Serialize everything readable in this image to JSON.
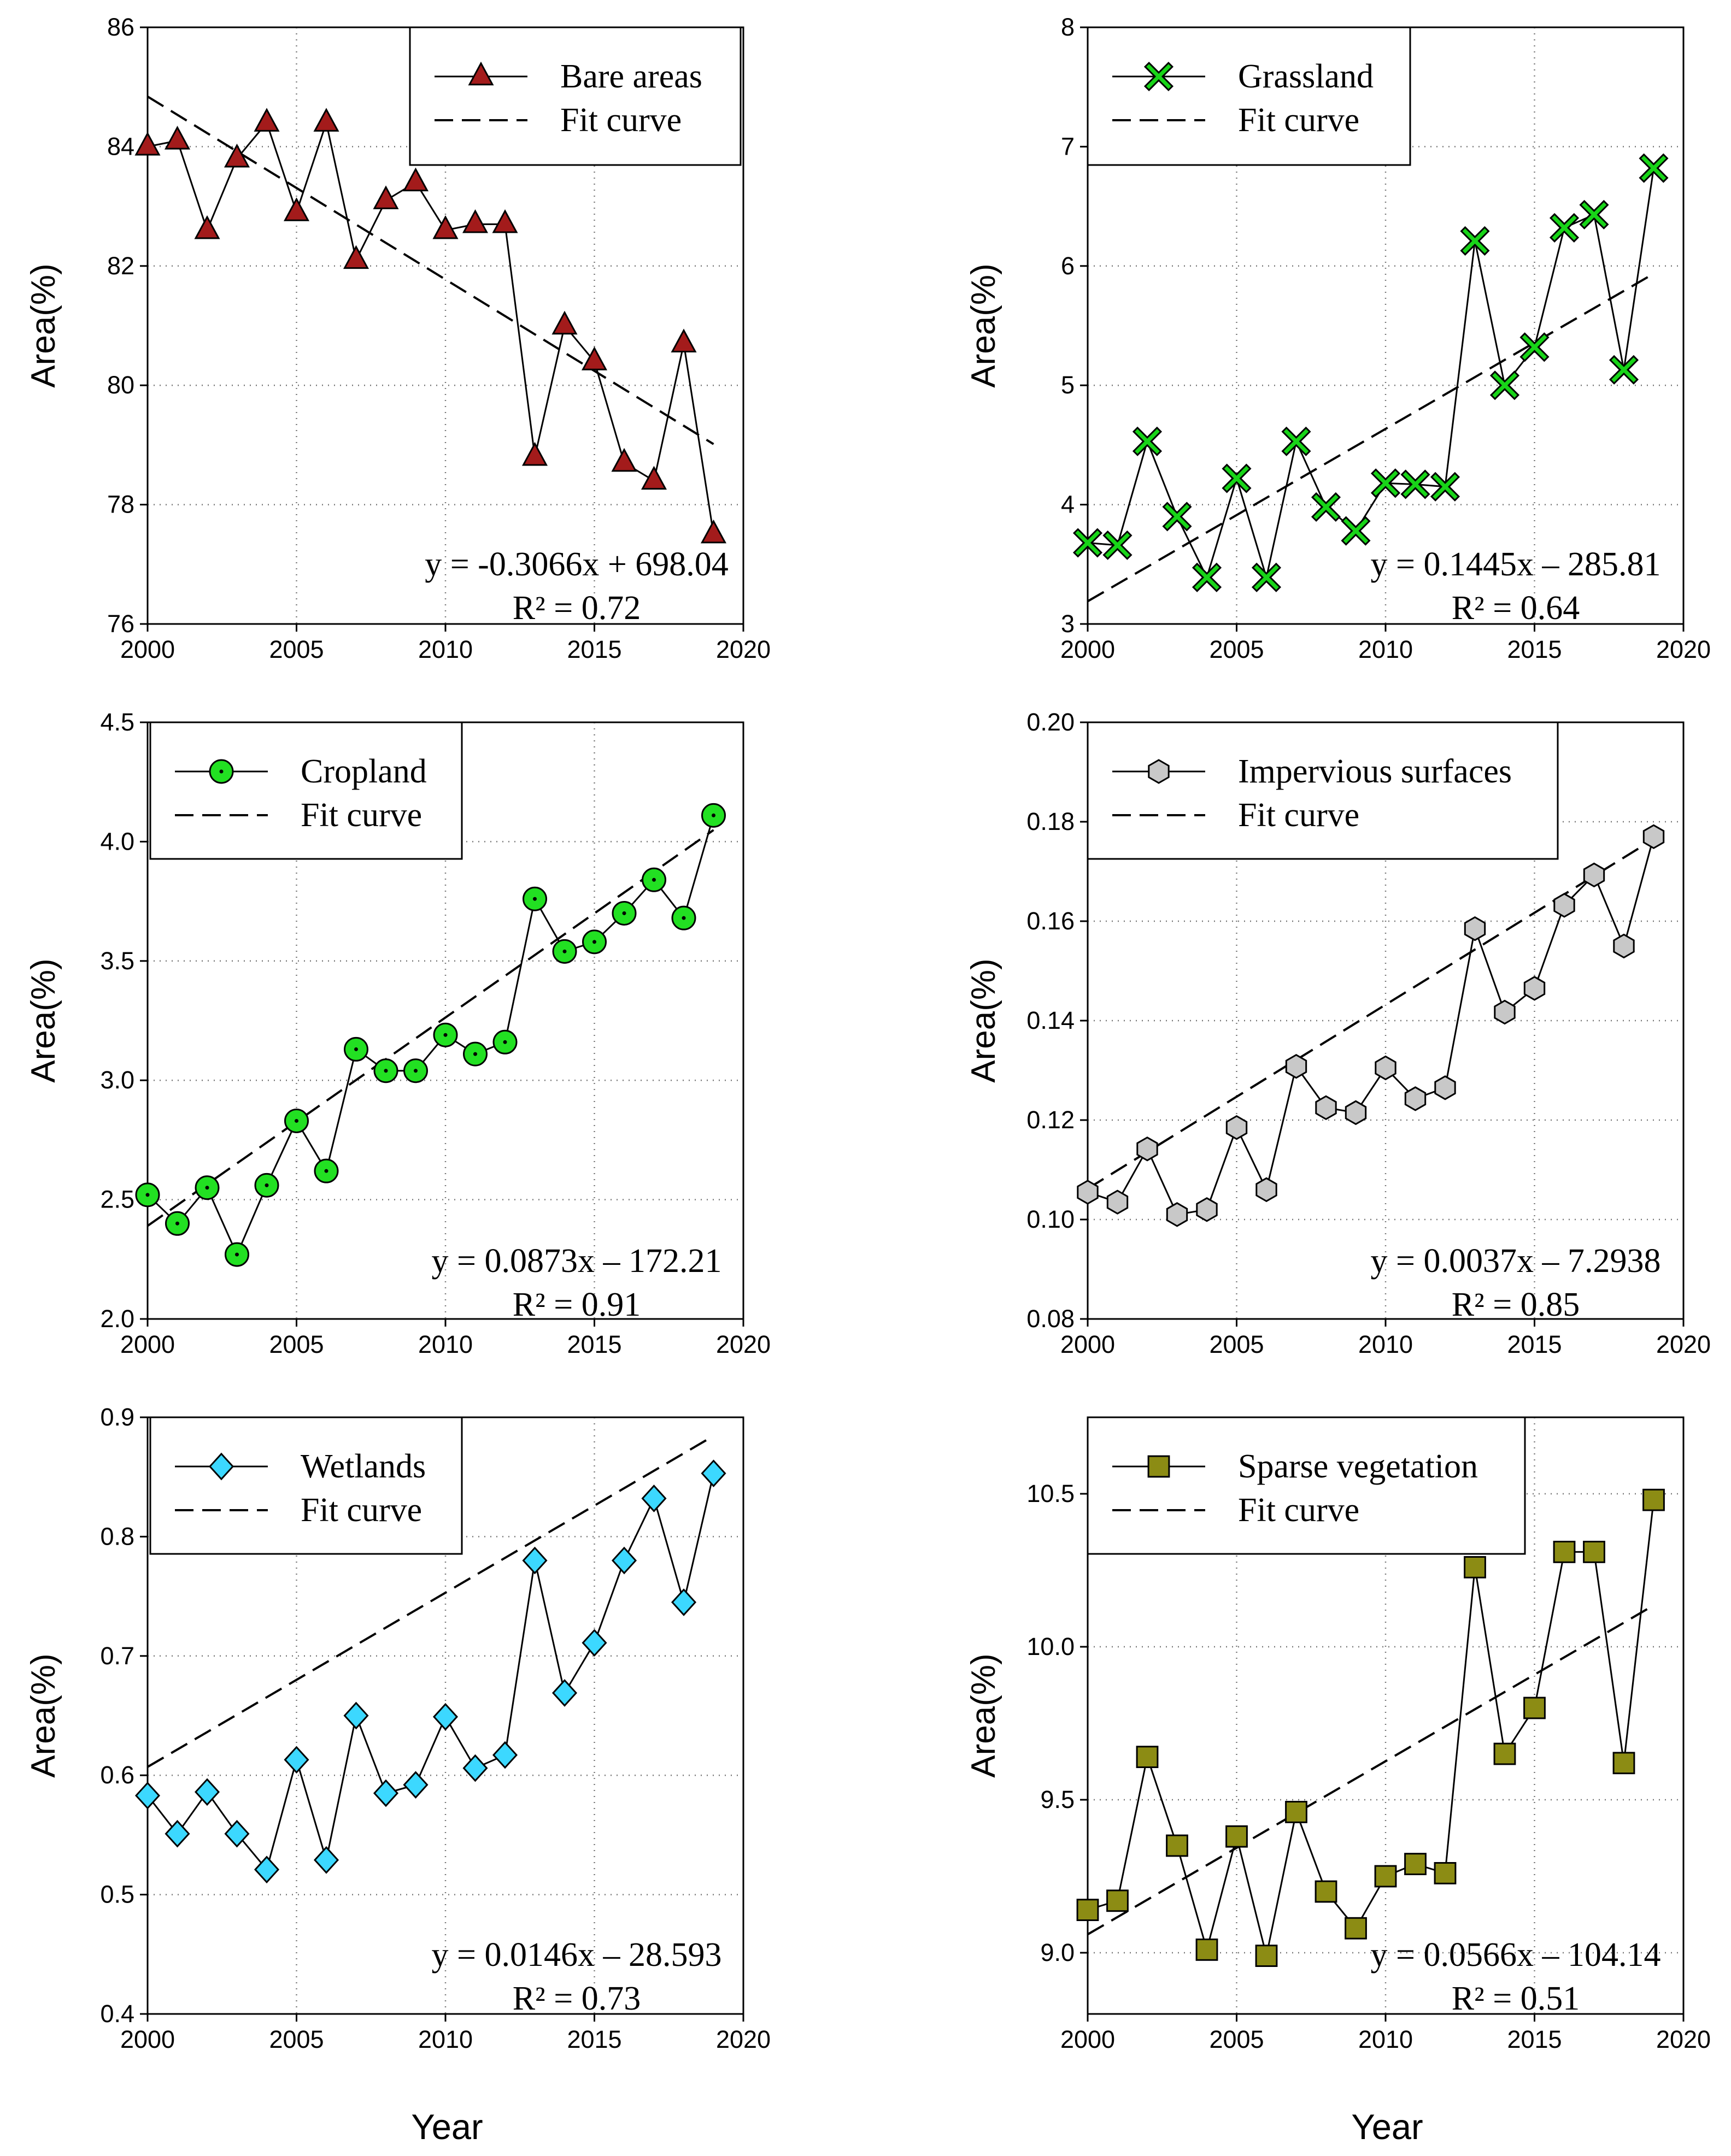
{
  "x_axis_label": "Year",
  "chart_data": [
    {
      "type": "line",
      "title": "Bare areas",
      "series_name": "Bare areas",
      "fit_label": "Fit curve",
      "marker": "triangle",
      "marker_color": "#a31b1b",
      "xlabel": "",
      "ylabel": "Area(%)",
      "xlim": [
        2000,
        2020
      ],
      "ylim": [
        76,
        86
      ],
      "x_ticks": [
        2000,
        2005,
        2010,
        2015,
        2020
      ],
      "y_ticks": [
        76,
        78,
        80,
        82,
        84,
        86
      ],
      "y_tick_labels": [
        "76",
        "78",
        "80",
        "82",
        "84",
        "86"
      ],
      "grid": true,
      "legend_position": "top-right",
      "x": [
        2000,
        2001,
        2002,
        2003,
        2004,
        2005,
        2006,
        2007,
        2008,
        2009,
        2010,
        2011,
        2012,
        2013,
        2014,
        2015,
        2016,
        2017,
        2018,
        2019
      ],
      "values": [
        84.0,
        84.1,
        82.6,
        83.8,
        84.4,
        82.9,
        84.4,
        82.1,
        83.1,
        83.4,
        82.6,
        82.7,
        82.7,
        78.8,
        81.0,
        80.4,
        78.7,
        78.4,
        80.7,
        77.5
      ],
      "fit": {
        "slope": -0.3066,
        "intercept": 698.04
      },
      "equation": "y = -0.3066x + 698.04",
      "r2": "R² = 0.72"
    },
    {
      "type": "line",
      "title": "Grassland",
      "series_name": "Grassland",
      "fit_label": "Fit curve",
      "marker": "x",
      "marker_color": "#18d418",
      "xlabel": "",
      "ylabel": "Area(%)",
      "xlim": [
        2000,
        2020
      ],
      "ylim": [
        3,
        8
      ],
      "x_ticks": [
        2000,
        2005,
        2010,
        2015,
        2020
      ],
      "y_ticks": [
        3,
        4,
        5,
        6,
        7,
        8
      ],
      "y_tick_labels": [
        "3",
        "4",
        "5",
        "6",
        "7",
        "8"
      ],
      "grid": true,
      "legend_position": "top-right",
      "x": [
        2000,
        2001,
        2002,
        2003,
        2004,
        2005,
        2006,
        2007,
        2008,
        2009,
        2010,
        2011,
        2012,
        2013,
        2014,
        2015,
        2016,
        2017,
        2018,
        2019
      ],
      "values": [
        3.68,
        3.66,
        4.53,
        3.9,
        3.39,
        4.22,
        3.39,
        4.53,
        3.98,
        3.78,
        4.18,
        4.17,
        4.15,
        6.21,
        5.0,
        5.32,
        6.32,
        6.43,
        5.13,
        6.82
      ],
      "fit": {
        "slope": 0.1445,
        "intercept": -285.81
      },
      "equation": "y = 0.1445x – 285.81",
      "r2": "R² = 0.64"
    },
    {
      "type": "line",
      "title": "Cropland",
      "series_name": "Cropland",
      "fit_label": "Fit curve",
      "marker": "circle",
      "marker_color": "#22e022",
      "xlabel": "",
      "ylabel": "Area(%)",
      "xlim": [
        2000,
        2020
      ],
      "ylim": [
        2.0,
        4.5
      ],
      "x_ticks": [
        2000,
        2005,
        2010,
        2015,
        2020
      ],
      "y_ticks": [
        2.0,
        2.5,
        3.0,
        3.5,
        4.0,
        4.5
      ],
      "y_tick_labels": [
        "2.0",
        "2.5",
        "3.0",
        "3.5",
        "4.0",
        "4.5"
      ],
      "grid": true,
      "legend_position": "top-left",
      "x": [
        2000,
        2001,
        2002,
        2003,
        2004,
        2005,
        2006,
        2007,
        2008,
        2009,
        2010,
        2011,
        2012,
        2013,
        2014,
        2015,
        2016,
        2017,
        2018,
        2019
      ],
      "values": [
        2.52,
        2.4,
        2.55,
        2.27,
        2.56,
        2.83,
        2.62,
        3.13,
        3.04,
        3.04,
        3.19,
        3.11,
        3.16,
        3.76,
        3.54,
        3.58,
        3.7,
        3.84,
        3.68,
        4.11
      ],
      "fit": {
        "slope": 0.0873,
        "intercept": -172.21
      },
      "equation": "y = 0.0873x – 172.21",
      "r2": "R² = 0.91"
    },
    {
      "type": "line",
      "title": "Impervious surfaces",
      "series_name": "Impervious surfaces",
      "fit_label": "Fit curve",
      "marker": "hexagon",
      "marker_color": "#c8c8c8",
      "xlabel": "",
      "ylabel": "Area(%)",
      "xlim": [
        2000,
        2020
      ],
      "ylim": [
        0.08,
        0.2
      ],
      "x_ticks": [
        2000,
        2005,
        2010,
        2015,
        2020
      ],
      "y_ticks": [
        0.08,
        0.1,
        0.12,
        0.14,
        0.16,
        0.18,
        0.2
      ],
      "y_tick_labels": [
        "0.08",
        "0.10",
        "0.12",
        "0.14",
        "0.16",
        "0.18",
        "0.20"
      ],
      "grid": true,
      "legend_position": "top-right",
      "x": [
        2000,
        2001,
        2002,
        2003,
        2004,
        2005,
        2006,
        2007,
        2008,
        2009,
        2010,
        2011,
        2012,
        2013,
        2014,
        2015,
        2016,
        2017,
        2018,
        2019
      ],
      "values": [
        0.1055,
        0.1035,
        0.1142,
        0.101,
        0.102,
        0.1185,
        0.106,
        0.1308,
        0.1225,
        0.1215,
        0.1305,
        0.1243,
        0.1265,
        0.1585,
        0.1417,
        0.1465,
        0.1632,
        0.1693,
        0.155,
        0.177
      ],
      "fit": {
        "slope": 0.0037,
        "intercept": -7.2938
      },
      "equation": "y = 0.0037x – 7.2938",
      "r2": "R² = 0.85"
    },
    {
      "type": "line",
      "title": "Wetlands",
      "series_name": "Wetlands",
      "fit_label": "Fit curve",
      "marker": "diamond",
      "marker_color": "#3cd8ff",
      "xlabel": "",
      "ylabel": "Area(%)",
      "xlim": [
        2000,
        2020
      ],
      "ylim": [
        0.4,
        0.9
      ],
      "x_ticks": [
        2000,
        2005,
        2010,
        2015,
        2020
      ],
      "y_ticks": [
        0.4,
        0.5,
        0.6,
        0.7,
        0.8,
        0.9
      ],
      "y_tick_labels": [
        "0.4",
        "0.5",
        "0.6",
        "0.7",
        "0.8",
        "0.9"
      ],
      "grid": true,
      "legend_position": "top-left",
      "x": [
        2000,
        2001,
        2002,
        2003,
        2004,
        2005,
        2006,
        2007,
        2008,
        2009,
        2010,
        2011,
        2012,
        2013,
        2014,
        2015,
        2016,
        2017,
        2018,
        2019
      ],
      "values": [
        0.583,
        0.551,
        0.586,
        0.551,
        0.521,
        0.613,
        0.529,
        0.65,
        0.585,
        0.592,
        0.649,
        0.606,
        0.617,
        0.78,
        0.669,
        0.711,
        0.78,
        0.832,
        0.745,
        0.853
      ],
      "fit": {
        "slope": 0.0146,
        "intercept": -28.593
      },
      "equation": "y = 0.0146x – 28.593",
      "r2": "R² = 0.73"
    },
    {
      "type": "line",
      "title": "Sparse vegetation",
      "series_name": "Sparse vegetation",
      "fit_label": "Fit curve",
      "marker": "square",
      "marker_color": "#8c8c14",
      "xlabel": "",
      "ylabel": "Area(%)",
      "xlim": [
        2000,
        2020
      ],
      "ylim": [
        8.8,
        10.75
      ],
      "x_ticks": [
        2000,
        2005,
        2010,
        2015,
        2020
      ],
      "y_ticks": [
        9.0,
        9.5,
        10.0,
        10.5
      ],
      "y_tick_labels": [
        "9.0",
        "9.5",
        "10.0",
        "10.5"
      ],
      "grid": true,
      "legend_position": "top-left",
      "x": [
        2000,
        2001,
        2002,
        2003,
        2004,
        2005,
        2006,
        2007,
        2008,
        2009,
        2010,
        2011,
        2012,
        2013,
        2014,
        2015,
        2016,
        2017,
        2018,
        2019
      ],
      "values": [
        9.14,
        9.17,
        9.64,
        9.35,
        9.01,
        9.38,
        8.99,
        9.46,
        9.2,
        9.08,
        9.25,
        9.29,
        9.26,
        10.26,
        9.65,
        9.8,
        10.31,
        10.31,
        9.62,
        10.48
      ],
      "fit": {
        "slope": 0.0566,
        "intercept": -104.14
      },
      "equation": "y = 0.0566x – 104.14",
      "r2": "R² = 0.51"
    }
  ]
}
